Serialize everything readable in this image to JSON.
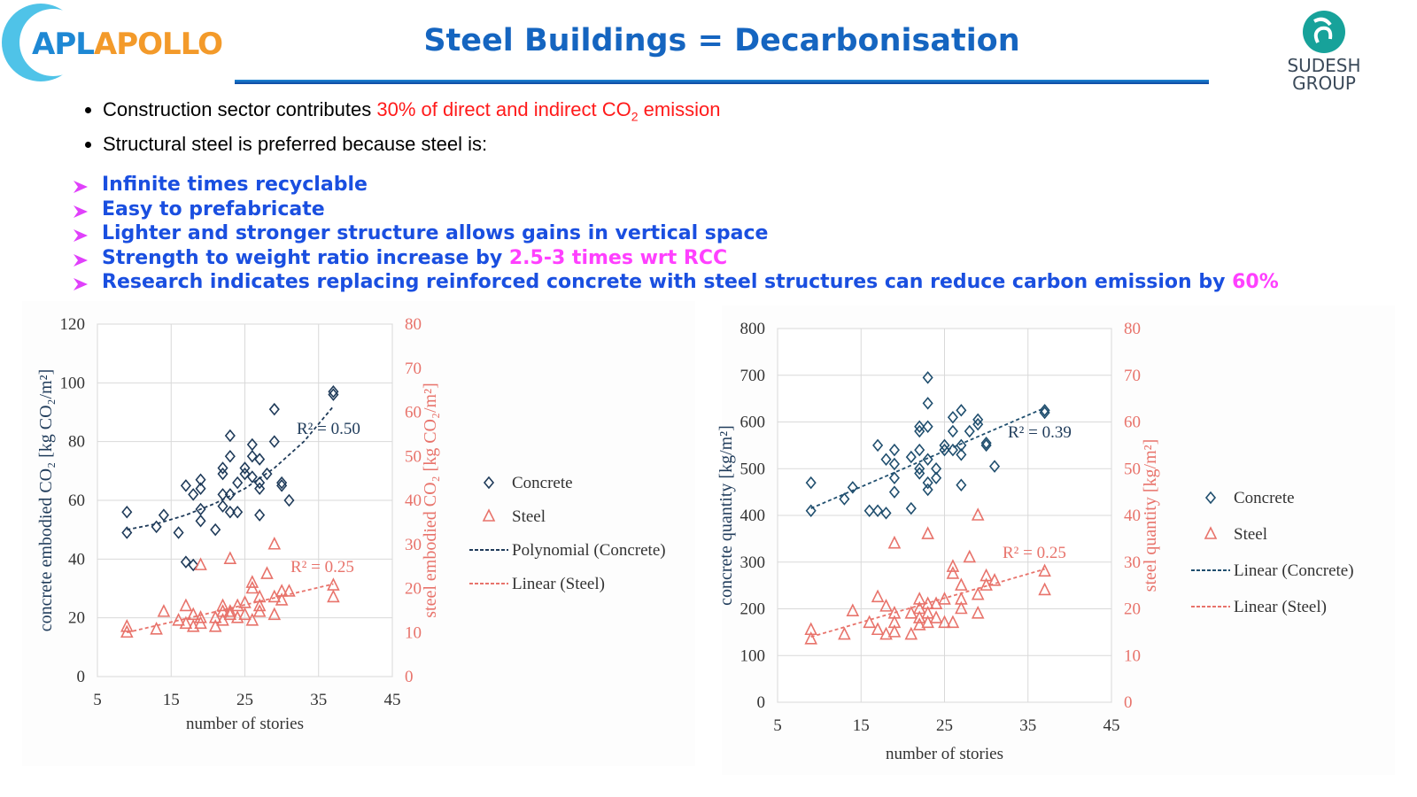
{
  "header": {
    "logo_left": [
      {
        "text": "APL",
        "color": "#1e88d4"
      },
      {
        "text": "APOLLO",
        "color": "#f39a2a"
      }
    ],
    "title": "Steel Buildings = Decarbonisation",
    "logo_right": [
      "SUDESH",
      "GROUP"
    ]
  },
  "bullets": [
    [
      {
        "text": "Construction sector contributes "
      },
      {
        "text": "30% of direct and indirect CO",
        "color": "#ff1a1a"
      },
      {
        "text": "2",
        "color": "#ff1a1a",
        "sub": true
      },
      {
        "text": " emission",
        "color": "#ff1a1a"
      }
    ],
    [
      {
        "text": "Structural steel is preferred because steel is:"
      }
    ]
  ],
  "reasons": [
    [
      {
        "text": "Infinite times recyclable"
      }
    ],
    [
      {
        "text": "Easy to prefabricate"
      }
    ],
    [
      {
        "text": "Lighter and stronger structure allows gains in vertical space"
      }
    ],
    [
      {
        "text": "Strength to weight ratio increase by "
      },
      {
        "text": "2.5-3 times wrt RCC",
        "color": "#ff40ff"
      }
    ],
    [
      {
        "text": "Research indicates replacing reinforced concrete with steel structures can reduce carbon emission by "
      },
      {
        "text": "60%",
        "color": "#ff40ff"
      }
    ]
  ],
  "chart_data": [
    {
      "type": "scatter",
      "xlabel": "number of stories",
      "ylabel": "concrete embodied CO₂ [kg CO₂/m²]",
      "y2label": "steel embodied CO₂ [kg CO₂/m²]",
      "xlim": [
        5,
        45
      ],
      "xticks": [
        5,
        15,
        25,
        35,
        45
      ],
      "ylim": [
        0,
        120
      ],
      "yticks": [
        0,
        20,
        40,
        60,
        80,
        100,
        120
      ],
      "y2lim": [
        0,
        80
      ],
      "y2ticks": [
        0,
        10,
        20,
        30,
        40,
        50,
        60,
        70,
        80
      ],
      "grid": true,
      "annotations": [
        "R² = 0.50",
        "R² = 0.25"
      ],
      "series": [
        {
          "name": "Concrete",
          "color": "#1f3b5a",
          "marker": "diamond",
          "x": [
            9,
            9,
            13,
            14,
            16,
            17,
            17,
            18,
            18,
            19,
            19,
            19,
            19,
            21,
            22,
            22,
            22,
            22,
            23,
            23,
            23,
            23,
            24,
            24,
            25,
            25,
            26,
            26,
            26,
            27,
            27,
            27,
            27,
            28,
            29,
            29,
            30,
            30,
            31,
            37,
            37
          ],
          "values": [
            56,
            49,
            51,
            55,
            49,
            65,
            39,
            62,
            38,
            67,
            64,
            57,
            53,
            50,
            71,
            69,
            62,
            58,
            82,
            75,
            62,
            56,
            66,
            56,
            71,
            69,
            79,
            75,
            68,
            74,
            66,
            64,
            55,
            69,
            91,
            80,
            66,
            65,
            60,
            97,
            96
          ]
        },
        {
          "name": "Steel",
          "color": "#e8736b",
          "marker": "triangle",
          "axis": "y2",
          "x": [
            9,
            9,
            13,
            14,
            16,
            17,
            17,
            18,
            18,
            19,
            19,
            19,
            21,
            21,
            22,
            22,
            22,
            23,
            23,
            23,
            24,
            24,
            25,
            25,
            26,
            26,
            26,
            27,
            27,
            27,
            28,
            29,
            29,
            29,
            30,
            30,
            31,
            37,
            37
          ],
          "values": [
            11.3,
            10,
            10.7,
            14.7,
            12.7,
            16,
            12,
            11.3,
            14,
            25.3,
            13.3,
            12,
            11.3,
            13.3,
            16,
            14.7,
            12.7,
            26.7,
            14.7,
            14,
            16,
            13.3,
            16.7,
            14,
            21.3,
            20,
            12.7,
            18,
            16,
            14.7,
            23.3,
            30,
            18,
            14,
            19.3,
            17.3,
            19.3,
            20.7,
            18
          ]
        },
        {
          "name": "Polynomial (Concrete)",
          "color": "#1f3b5a",
          "marker": "none",
          "linestyle": "dashed",
          "x": [
            9,
            13,
            17,
            21,
            25,
            29,
            33,
            37
          ],
          "values": [
            50,
            52,
            55,
            59,
            64,
            71,
            80,
            92
          ]
        },
        {
          "name": "Linear (Steel)",
          "color": "#e8736b",
          "marker": "none",
          "linestyle": "dashed",
          "axis": "y2",
          "x": [
            9,
            37
          ],
          "values": [
            10,
            21
          ]
        }
      ]
    },
    {
      "type": "scatter",
      "xlabel": "number of stories",
      "ylabel": "concrete quantity [kg/m²]",
      "y2label": "steel quantity [kg/m²]",
      "xlim": [
        5,
        45
      ],
      "xticks": [
        5,
        15,
        25,
        35,
        45
      ],
      "ylim": [
        0,
        800
      ],
      "yticks": [
        0,
        100,
        200,
        300,
        400,
        500,
        600,
        700,
        800
      ],
      "y2lim": [
        0,
        80
      ],
      "y2ticks": [
        0,
        10,
        20,
        30,
        40,
        50,
        60,
        70,
        80
      ],
      "grid": true,
      "annotations": [
        "R² = 0.39",
        "R² = 0.25"
      ],
      "series": [
        {
          "name": "Concrete",
          "color": "#1f4e6e",
          "marker": "diamond",
          "x": [
            9,
            9,
            13,
            14,
            16,
            17,
            17,
            18,
            18,
            19,
            19,
            19,
            19,
            21,
            21,
            22,
            22,
            22,
            22,
            22,
            23,
            23,
            23,
            23,
            23,
            23,
            24,
            24,
            25,
            25,
            26,
            26,
            26,
            27,
            27,
            27,
            27,
            28,
            29,
            29,
            30,
            30,
            31,
            37,
            37
          ],
          "values": [
            470,
            410,
            435,
            460,
            410,
            550,
            410,
            520,
            405,
            540,
            510,
            480,
            450,
            415,
            525,
            590,
            580,
            540,
            500,
            490,
            695,
            640,
            590,
            520,
            470,
            455,
            500,
            480,
            550,
            540,
            610,
            580,
            540,
            625,
            550,
            530,
            465,
            580,
            605,
            595,
            555,
            550,
            505,
            625,
            620
          ]
        },
        {
          "name": "Steel",
          "color": "#e8736b",
          "marker": "triangle",
          "axis": "y2",
          "x": [
            9,
            9,
            13,
            14,
            16,
            17,
            17,
            18,
            18,
            19,
            19,
            19,
            19,
            21,
            21,
            22,
            22,
            22,
            22,
            23,
            23,
            23,
            23,
            24,
            24,
            25,
            25,
            26,
            26,
            26,
            27,
            27,
            27,
            28,
            29,
            29,
            29,
            30,
            30,
            31,
            37,
            37
          ],
          "values": [
            15.5,
            13.5,
            14.5,
            19.5,
            17,
            22.5,
            15.5,
            20.5,
            14.5,
            34,
            19,
            17,
            15,
            19,
            14.5,
            22,
            20,
            18,
            16.5,
            36,
            21,
            19,
            17,
            21,
            18,
            22,
            17,
            29,
            27.5,
            17,
            25,
            22,
            20,
            31,
            40,
            23,
            19,
            27,
            25,
            26,
            28,
            24
          ]
        },
        {
          "name": "Linear (Concrete)",
          "color": "#1f4e6e",
          "marker": "none",
          "linestyle": "dashed",
          "x": [
            9,
            37
          ],
          "values": [
            415,
            630
          ]
        },
        {
          "name": "Linear (Steel)",
          "color": "#e8736b",
          "marker": "none",
          "linestyle": "dashed",
          "axis": "y2",
          "x": [
            9,
            37
          ],
          "values": [
            14,
            28.5
          ]
        }
      ]
    }
  ]
}
